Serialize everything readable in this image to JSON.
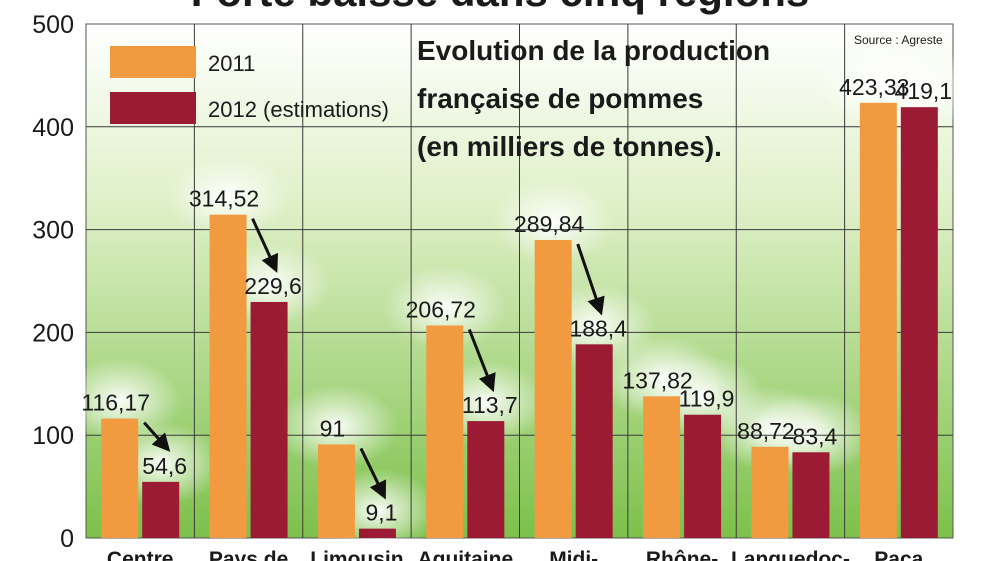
{
  "headline": "Forte baisse dans cinq régions",
  "source": "Source : Agreste",
  "colors": {
    "series_2011": "#f29a3f",
    "series_2012": "#9b1b35",
    "plot_bg_top": "#ffffff",
    "plot_bg_bottom": "#7cc04a",
    "grid": "#3a3a3a"
  },
  "chart_data": {
    "type": "bar",
    "title": "Evolution de la production française de pommes (en milliers de tonnes).",
    "title_lines": [
      "Evolution de la production",
      "française de pommes",
      "(en milliers de tonnes)."
    ],
    "categories": [
      "Centre",
      "Pays de",
      "Limousin",
      "Aquitaine",
      "Midi-",
      "Rhône-",
      "Languedoc-",
      "Paca"
    ],
    "series": [
      {
        "name": "2011",
        "values": [
          116.17,
          314.52,
          91,
          206.72,
          289.84,
          137.82,
          88.72,
          423.33
        ],
        "labels": [
          "116,17",
          "314,52",
          "91",
          "206,72",
          "289,84",
          "137,82",
          "88,72",
          "423,33"
        ]
      },
      {
        "name": "2012 (estimations)",
        "values": [
          54.6,
          229.6,
          9.1,
          113.7,
          188.4,
          119.9,
          83.4,
          419.1
        ],
        "labels": [
          "54,6",
          "229,6",
          "9,1",
          "113,7",
          "188,4",
          "119,9",
          "83,4",
          "419,1"
        ]
      }
    ],
    "yticks": [
      0,
      100,
      200,
      300,
      400,
      500
    ],
    "ytick_labels": [
      "0",
      "100",
      "200",
      "300",
      "400",
      "500"
    ],
    "ylim": [
      0,
      500
    ],
    "grid": true,
    "legend": "top-left",
    "decline_arrows": [
      0,
      1,
      2,
      3,
      4
    ]
  }
}
